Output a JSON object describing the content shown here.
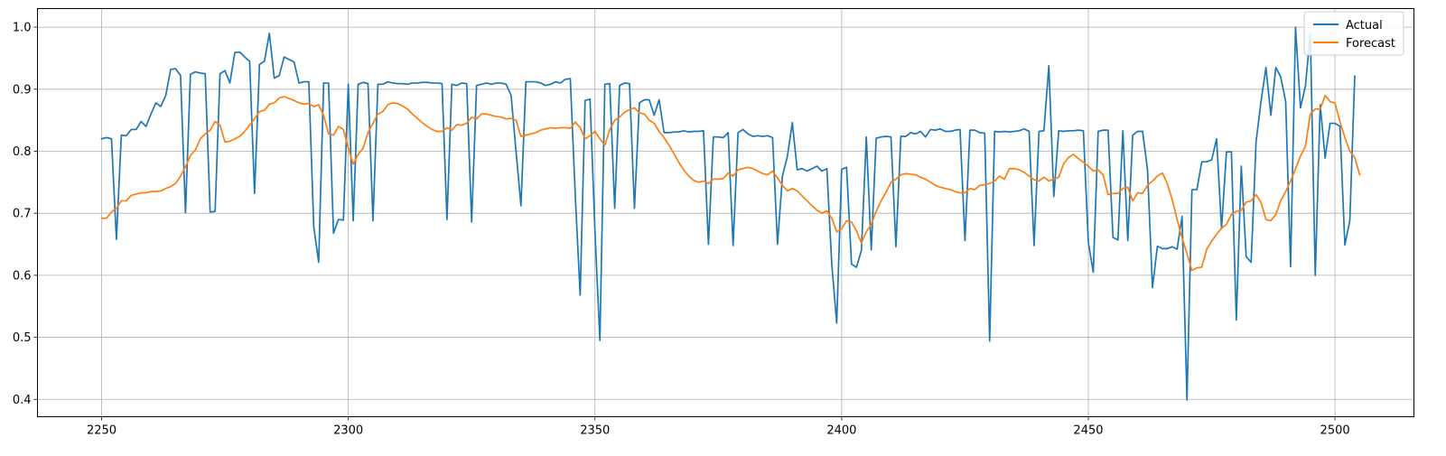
{
  "chart_data": {
    "type": "line",
    "title": "",
    "xlabel": "",
    "ylabel": "",
    "xlim": [
      2237,
      2516
    ],
    "ylim": [
      0.372,
      1.03
    ],
    "xticks": [
      2250,
      2300,
      2350,
      2400,
      2450,
      2500
    ],
    "yticks": [
      0.4,
      0.5,
      0.6,
      0.7,
      0.8,
      0.9,
      1.0
    ],
    "xtick_labels": [
      "2250",
      "2300",
      "2350",
      "2400",
      "2450",
      "2500"
    ],
    "ytick_labels": [
      "0.4",
      "0.5",
      "0.6",
      "0.7",
      "0.8",
      "0.9",
      "1.0"
    ],
    "grid": true,
    "legend_position": "upper right",
    "series": [
      {
        "name": "Actual",
        "color": "#1f77b4",
        "x_start": 2250,
        "values": [
          0.82,
          0.822,
          0.82,
          0.658,
          0.826,
          0.825,
          0.835,
          0.835,
          0.848,
          0.84,
          0.86,
          0.878,
          0.872,
          0.89,
          0.932,
          0.933,
          0.922,
          0.701,
          0.924,
          0.928,
          0.926,
          0.925,
          0.702,
          0.703,
          0.925,
          0.93,
          0.91,
          0.959,
          0.96,
          0.952,
          0.945,
          0.732,
          0.94,
          0.945,
          0.99,
          0.918,
          0.922,
          0.952,
          0.948,
          0.944,
          0.91,
          0.912,
          0.912,
          0.678,
          0.621,
          0.91,
          0.91,
          0.668,
          0.69,
          0.689,
          0.908,
          0.688,
          0.908,
          0.911,
          0.909,
          0.688,
          0.908,
          0.908,
          0.912,
          0.91,
          0.909,
          0.909,
          0.908,
          0.91,
          0.91,
          0.911,
          0.911,
          0.91,
          0.91,
          0.909,
          0.69,
          0.908,
          0.906,
          0.91,
          0.909,
          0.686,
          0.906,
          0.908,
          0.91,
          0.908,
          0.91,
          0.91,
          0.908,
          0.89,
          0.8,
          0.712,
          0.912,
          0.912,
          0.912,
          0.91,
          0.906,
          0.908,
          0.912,
          0.91,
          0.916,
          0.917,
          0.73,
          0.568,
          0.882,
          0.884,
          0.67,
          0.495,
          0.908,
          0.909,
          0.708,
          0.906,
          0.91,
          0.909,
          0.708,
          0.878,
          0.883,
          0.883,
          0.858,
          0.883,
          0.83,
          0.83,
          0.831,
          0.831,
          0.833,
          0.831,
          0.832,
          0.832,
          0.833,
          0.65,
          0.823,
          0.823,
          0.822,
          0.83,
          0.648,
          0.83,
          0.835,
          0.828,
          0.824,
          0.825,
          0.824,
          0.825,
          0.822,
          0.65,
          0.76,
          0.792,
          0.846,
          0.77,
          0.772,
          0.768,
          0.772,
          0.776,
          0.768,
          0.772,
          0.618,
          0.523,
          0.771,
          0.774,
          0.618,
          0.613,
          0.64,
          0.823,
          0.641,
          0.821,
          0.823,
          0.824,
          0.823,
          0.646,
          0.824,
          0.824,
          0.83,
          0.828,
          0.832,
          0.823,
          0.835,
          0.834,
          0.836,
          0.832,
          0.832,
          0.834,
          0.835,
          0.656,
          0.834,
          0.834,
          0.83,
          0.829,
          0.494,
          0.832,
          0.831,
          0.832,
          0.831,
          0.832,
          0.833,
          0.836,
          0.832,
          0.648,
          0.832,
          0.833,
          0.938,
          0.727,
          0.833,
          0.832,
          0.833,
          0.833,
          0.834,
          0.833,
          0.653,
          0.605,
          0.832,
          0.834,
          0.834,
          0.661,
          0.657,
          0.833,
          0.656,
          0.826,
          0.832,
          0.832,
          0.77,
          0.58,
          0.647,
          0.643,
          0.643,
          0.646,
          0.642,
          0.695,
          0.399,
          0.738,
          0.738,
          0.783,
          0.783,
          0.786,
          0.82,
          0.675,
          0.799,
          0.799,
          0.528,
          0.776,
          0.63,
          0.621,
          0.815,
          0.88,
          0.935,
          0.858,
          0.935,
          0.92,
          0.88,
          0.614,
          1.0,
          0.87,
          0.905,
          0.99,
          0.6,
          0.875,
          0.789,
          0.845,
          0.845,
          0.84,
          0.649,
          0.688,
          0.921
        ]
      },
      {
        "name": "Forecast",
        "color": "#ff7f0e",
        "x_start": 2250,
        "values": [
          0.692,
          0.692,
          0.702,
          0.708,
          0.72,
          0.72,
          0.729,
          0.731,
          0.733,
          0.733,
          0.735,
          0.735,
          0.736,
          0.74,
          0.743,
          0.748,
          0.76,
          0.775,
          0.793,
          0.802,
          0.82,
          0.828,
          0.834,
          0.848,
          0.842,
          0.815,
          0.816,
          0.82,
          0.824,
          0.832,
          0.842,
          0.852,
          0.864,
          0.866,
          0.876,
          0.878,
          0.886,
          0.888,
          0.885,
          0.882,
          0.878,
          0.876,
          0.877,
          0.872,
          0.875,
          0.858,
          0.828,
          0.826,
          0.84,
          0.835,
          0.805,
          0.779,
          0.795,
          0.805,
          0.83,
          0.845,
          0.86,
          0.864,
          0.875,
          0.878,
          0.877,
          0.873,
          0.868,
          0.86,
          0.853,
          0.846,
          0.84,
          0.835,
          0.832,
          0.832,
          0.838,
          0.834,
          0.843,
          0.842,
          0.845,
          0.855,
          0.852,
          0.86,
          0.86,
          0.858,
          0.856,
          0.855,
          0.852,
          0.853,
          0.85,
          0.824,
          0.826,
          0.828,
          0.83,
          0.834,
          0.836,
          0.838,
          0.837,
          0.838,
          0.838,
          0.837,
          0.847,
          0.838,
          0.82,
          0.825,
          0.832,
          0.82,
          0.81,
          0.835,
          0.85,
          0.855,
          0.863,
          0.867,
          0.87,
          0.862,
          0.86,
          0.85,
          0.845,
          0.832,
          0.822,
          0.81,
          0.796,
          0.782,
          0.77,
          0.76,
          0.753,
          0.75,
          0.752,
          0.748,
          0.755,
          0.755,
          0.756,
          0.765,
          0.76,
          0.77,
          0.772,
          0.774,
          0.772,
          0.768,
          0.764,
          0.762,
          0.768,
          0.757,
          0.745,
          0.736,
          0.74,
          0.736,
          0.728,
          0.72,
          0.712,
          0.705,
          0.7,
          0.704,
          0.692,
          0.67,
          0.675,
          0.688,
          0.686,
          0.672,
          0.652,
          0.67,
          0.682,
          0.703,
          0.72,
          0.734,
          0.75,
          0.755,
          0.762,
          0.764,
          0.763,
          0.762,
          0.758,
          0.755,
          0.75,
          0.745,
          0.742,
          0.74,
          0.738,
          0.735,
          0.733,
          0.733,
          0.74,
          0.738,
          0.745,
          0.746,
          0.748,
          0.752,
          0.76,
          0.755,
          0.772,
          0.772,
          0.77,
          0.766,
          0.76,
          0.754,
          0.752,
          0.758,
          0.752,
          0.755,
          0.758,
          0.78,
          0.79,
          0.795,
          0.788,
          0.782,
          0.776,
          0.768,
          0.77,
          0.762,
          0.73,
          0.732,
          0.732,
          0.74,
          0.742,
          0.72,
          0.733,
          0.732,
          0.745,
          0.752,
          0.76,
          0.765,
          0.748,
          0.722,
          0.69,
          0.66,
          0.635,
          0.608,
          0.612,
          0.613,
          0.642,
          0.655,
          0.666,
          0.676,
          0.682,
          0.698,
          0.703,
          0.705,
          0.718,
          0.72,
          0.73,
          0.718,
          0.69,
          0.688,
          0.698,
          0.72,
          0.735,
          0.752,
          0.772,
          0.792,
          0.808,
          0.86,
          0.868,
          0.868,
          0.89,
          0.88,
          0.878,
          0.848,
          0.822,
          0.8,
          0.79,
          0.762
        ]
      }
    ]
  }
}
